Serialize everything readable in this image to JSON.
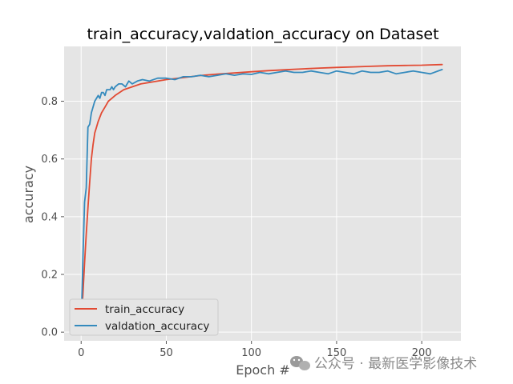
{
  "chart_data": {
    "type": "line",
    "title": "train_accuracy,valdation_accuracy on Dataset",
    "xlabel": "Epoch #",
    "ylabel": "accuracy",
    "xlim": [
      -10,
      223
    ],
    "ylim": [
      -0.03,
      0.99
    ],
    "xticks": [
      0,
      50,
      100,
      150,
      200
    ],
    "yticks": [
      0.0,
      0.2,
      0.4,
      0.6,
      0.8
    ],
    "xtick_labels": [
      "0",
      "50",
      "100",
      "150",
      "200"
    ],
    "ytick_labels": [
      "0.0",
      "0.2",
      "0.4",
      "0.6",
      "0.8"
    ],
    "grid": true,
    "legend_position": "lower-left",
    "series": [
      {
        "name": "train_accuracy",
        "color": "#e24a33",
        "x": [
          0,
          1,
          2,
          3,
          4,
          5,
          6,
          7,
          8,
          9,
          10,
          12,
          14,
          16,
          18,
          20,
          25,
          30,
          35,
          40,
          50,
          60,
          70,
          80,
          90,
          100,
          110,
          120,
          130,
          140,
          150,
          160,
          170,
          180,
          190,
          200,
          205,
          212
        ],
        "y": [
          0.03,
          0.13,
          0.24,
          0.34,
          0.43,
          0.52,
          0.6,
          0.65,
          0.69,
          0.71,
          0.73,
          0.76,
          0.78,
          0.8,
          0.81,
          0.82,
          0.84,
          0.85,
          0.86,
          0.865,
          0.875,
          0.882,
          0.889,
          0.894,
          0.898,
          0.902,
          0.906,
          0.909,
          0.912,
          0.915,
          0.917,
          0.919,
          0.921,
          0.923,
          0.924,
          0.925,
          0.926,
          0.927
        ]
      },
      {
        "name": "valdation_accuracy",
        "color": "#348abd",
        "x": [
          0,
          1,
          2,
          3,
          4,
          5,
          6,
          7,
          8,
          9,
          10,
          11,
          12,
          13,
          14,
          15,
          16,
          17,
          18,
          19,
          20,
          22,
          24,
          26,
          28,
          30,
          33,
          36,
          40,
          45,
          50,
          55,
          60,
          65,
          70,
          75,
          80,
          85,
          90,
          95,
          100,
          105,
          110,
          115,
          120,
          125,
          130,
          135,
          140,
          145,
          150,
          155,
          160,
          165,
          170,
          175,
          180,
          185,
          190,
          195,
          200,
          205,
          212
        ],
        "y": [
          0.02,
          0.25,
          0.45,
          0.5,
          0.71,
          0.72,
          0.76,
          0.78,
          0.8,
          0.81,
          0.82,
          0.81,
          0.83,
          0.83,
          0.82,
          0.84,
          0.84,
          0.84,
          0.85,
          0.84,
          0.85,
          0.86,
          0.86,
          0.85,
          0.87,
          0.86,
          0.87,
          0.875,
          0.87,
          0.88,
          0.88,
          0.875,
          0.885,
          0.885,
          0.89,
          0.885,
          0.89,
          0.895,
          0.89,
          0.895,
          0.893,
          0.9,
          0.895,
          0.9,
          0.905,
          0.9,
          0.9,
          0.905,
          0.9,
          0.895,
          0.905,
          0.9,
          0.895,
          0.905,
          0.9,
          0.9,
          0.905,
          0.895,
          0.9,
          0.905,
          0.9,
          0.895,
          0.91
        ]
      }
    ]
  },
  "watermark": {
    "icon": "wechat-icon",
    "text": "公众号 · 最新医学影像技术"
  }
}
